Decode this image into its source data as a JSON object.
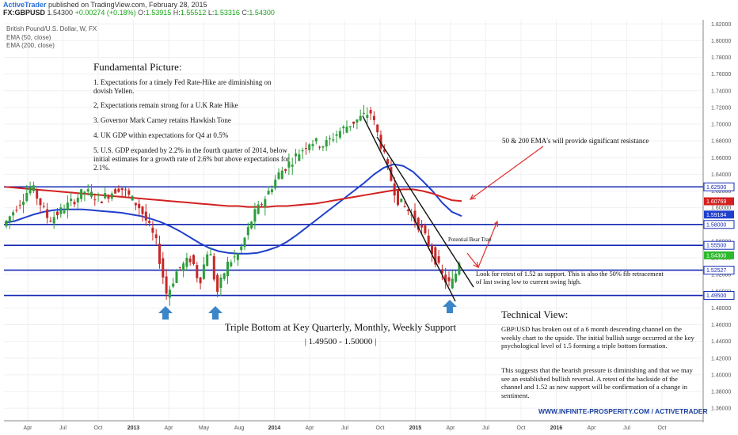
{
  "header": {
    "brand": "ActiveTrader",
    "published": "published on TradingView.com, February 28, 2015",
    "symbol": "FX:GBPUSD",
    "last": "1.54300",
    "change": "+0.00274 (+0.18%)",
    "open_label": "O:",
    "open": "1.53915",
    "high_label": "H:",
    "high": "1.55512",
    "low_label": "L:",
    "low": "1.53316",
    "close_label": "C:",
    "close": "1.54300"
  },
  "legend": {
    "instrument": "British Pound/U.S. Dollar, W, FX",
    "ema50": "EMA (50, close)",
    "ema200": "EMA (200, close)"
  },
  "fundamental": {
    "title": "Fundamental Picture:",
    "items": [
      "1. Expectations for a timely Fed Rate-Hike are diminishing on dovish Yellen.",
      "2, Expectations remain strong for a U.K Rate Hike",
      "3. Governor Mark Carney retains Hawkish Tone",
      "4. UK GDP within expectations for Q4 at 0.5%",
      "5. U.S. GDP expanded by 2.2% in the fourth quarter of 2014, below initial estimates for a growth rate of 2.6% but above expectations for 2.1%."
    ]
  },
  "annotations": {
    "ema_resistance": "50 & 200 EMA's will provide significant resistance",
    "bear_trap": "Potential Bear Trap",
    "retest": "Look for retest of 1.52 as support. This is also the 50% fib retracement of last swing low to current swing high.",
    "triple_bottom_line1": "Triple Bottom at Key Quarterly, Monthly, Weekly Support",
    "triple_bottom_line2": "| 1.49500 - 1.50000 |"
  },
  "technical": {
    "title": "Technical View:",
    "para1": "GBP/USD has broken out of a 6 month descending channel on the weekly chart to the upside. The initial bullish surge occurred at the key psychological level of 1.5 forming a triple bottom formation.",
    "para2": "This suggests that the bearish pressure is diminishing and that we may see an established bullish reversal. A retest of the backside of the channel and 1.52 as new support will be confirmation of a change in sentiment."
  },
  "footer": "WWW.INFINITE-PROSPERITY.COM / ACTIVETRADER",
  "colors": {
    "bull": "#2e9e3c",
    "bear": "#c62828",
    "ema50": "#1f3fcc",
    "ema200": "#d32020",
    "level": "#1428b4",
    "channel": "#111111",
    "arrow_red": "#e23030",
    "arrow_blue": "#3a86c8"
  },
  "chart_data": {
    "type": "candlestick",
    "timeframe": "weekly",
    "ylim": [
      1.345,
      1.825
    ],
    "y_ticks": [
      1.36,
      1.38,
      1.4,
      1.42,
      1.44,
      1.46,
      1.48,
      1.5,
      1.52,
      1.54,
      1.56,
      1.58,
      1.6,
      1.62,
      1.64,
      1.66,
      1.68,
      1.7,
      1.72,
      1.74,
      1.76,
      1.78,
      1.8,
      1.82
    ],
    "x_ticks": [
      {
        "label": "Apr",
        "bold": false
      },
      {
        "label": "Jul",
        "bold": false
      },
      {
        "label": "Oct",
        "bold": false
      },
      {
        "label": "2013",
        "bold": true
      },
      {
        "label": "Apr",
        "bold": false
      },
      {
        "label": "May",
        "bold": false
      },
      {
        "label": "Aug",
        "bold": false
      },
      {
        "label": "2014",
        "bold": true
      },
      {
        "label": "Apr",
        "bold": false
      },
      {
        "label": "Jul",
        "bold": false
      },
      {
        "label": "Oct",
        "bold": false
      },
      {
        "label": "2015",
        "bold": true
      },
      {
        "label": "Apr",
        "bold": false
      },
      {
        "label": "Jul",
        "bold": false
      },
      {
        "label": "Oct",
        "bold": false
      },
      {
        "label": "2016",
        "bold": true
      },
      {
        "label": "Apr",
        "bold": false
      },
      {
        "label": "Jul",
        "bold": false
      },
      {
        "label": "Oct",
        "bold": false
      }
    ],
    "horizontal_levels": [
      {
        "value": 1.625,
        "label": "1.62500"
      },
      {
        "value": 1.58,
        "label": "1.58000"
      },
      {
        "value": 1.555,
        "label": "1.55500"
      },
      {
        "value": 1.52527,
        "label": "1.52527"
      },
      {
        "value": 1.495,
        "label": "1.49500"
      }
    ],
    "price_tags": [
      {
        "value": 1.60769,
        "label": "1.60769",
        "color": "#d32020"
      },
      {
        "value": 1.59184,
        "label": "1.59184",
        "color": "#1f3fcc"
      },
      {
        "value": 1.543,
        "label": "1.54300",
        "color": "#2eb82e"
      }
    ],
    "minor_axis_labels": [
      "1.60000",
      "1.56000"
    ],
    "series": [
      {
        "name": "EMA (50, close)",
        "values": [
          1.582,
          1.584,
          1.588,
          1.592,
          1.595,
          1.597,
          1.598,
          1.598,
          1.598,
          1.597,
          1.596,
          1.595,
          1.594,
          1.592,
          1.59,
          1.587,
          1.583,
          1.578,
          1.572,
          1.565,
          1.558,
          1.552,
          1.548,
          1.546,
          1.545,
          1.545,
          1.546,
          1.549,
          1.553,
          1.559,
          1.567,
          1.576,
          1.585,
          1.594,
          1.603,
          1.612,
          1.621,
          1.63,
          1.64,
          1.648,
          1.652,
          1.65,
          1.643,
          1.632,
          1.62,
          1.606,
          1.595,
          1.59
        ]
      },
      {
        "name": "EMA (200, close)",
        "values": [
          1.625,
          1.624,
          1.623,
          1.622,
          1.621,
          1.62,
          1.619,
          1.618,
          1.617,
          1.616,
          1.615,
          1.614,
          1.613,
          1.612,
          1.611,
          1.61,
          1.609,
          1.608,
          1.607,
          1.606,
          1.605,
          1.604,
          1.603,
          1.602,
          1.602,
          1.601,
          1.601,
          1.601,
          1.602,
          1.602,
          1.603,
          1.604,
          1.605,
          1.607,
          1.609,
          1.611,
          1.613,
          1.615,
          1.617,
          1.619,
          1.621,
          1.622,
          1.622,
          1.62,
          1.617,
          1.613,
          1.609,
          1.608
        ]
      }
    ]
  }
}
